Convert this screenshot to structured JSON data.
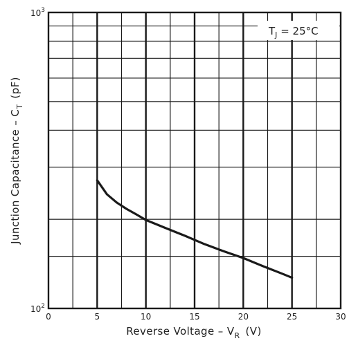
{
  "chart_data": {
    "type": "line",
    "title": "",
    "x_axis": {
      "label_main": "Reverse Voltage – V",
      "label_sub": "R",
      "label_unit": "(V)",
      "range": [
        0,
        30
      ],
      "ticks": [
        0,
        5,
        10,
        15,
        20,
        25,
        30
      ],
      "tick_labels": [
        "0",
        "5",
        "10",
        "15",
        "20",
        "25",
        "30"
      ],
      "minor_step": 2.5
    },
    "y_axis": {
      "label_main": "Junction Capacitance – C",
      "label_sub": "T",
      "label_unit": "(pF)",
      "scale": "log",
      "range": [
        100,
        1000
      ],
      "tick_labels": [
        {
          "base": "10",
          "exp": "2",
          "value": 100
        },
        {
          "base": "10",
          "exp": "3",
          "value": 1000
        }
      ],
      "gridlines": [
        150,
        200,
        300,
        400,
        500,
        600,
        700,
        800,
        900
      ]
    },
    "annotation": {
      "prefix": "T",
      "sub": "J",
      "suffix": " = 25°C"
    },
    "series": [
      {
        "x": [
          5,
          6,
          7,
          8,
          9,
          10,
          12,
          14,
          16,
          18,
          20,
          22,
          24,
          25
        ],
        "y": [
          271,
          243,
          228,
          217,
          208,
          199,
          187,
          176,
          165,
          156,
          148,
          139,
          131,
          127
        ]
      }
    ],
    "grid": true,
    "legend": "none"
  }
}
